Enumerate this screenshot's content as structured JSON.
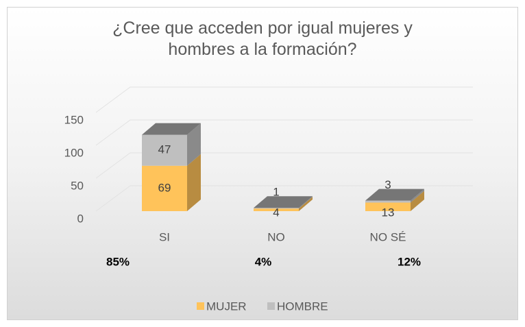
{
  "chart_data": {
    "type": "bar3d_stacked",
    "title": "¿Cree que acceden por igual mujeres y hombres a la formación?",
    "categories": [
      "SI",
      "NO",
      "NO SÉ"
    ],
    "series": [
      {
        "name": "MUJER",
        "color": "#ffc35a",
        "values": [
          69,
          4,
          13
        ]
      },
      {
        "name": "HOMBRE",
        "color": "#bfbfbf",
        "values": [
          47,
          1,
          3
        ]
      }
    ],
    "annotations": [
      "85%",
      "4%",
      "12%"
    ],
    "ylim": [
      0,
      150
    ],
    "yticks": [
      0,
      50,
      100,
      150
    ],
    "grid": true,
    "legend": "bottom"
  }
}
